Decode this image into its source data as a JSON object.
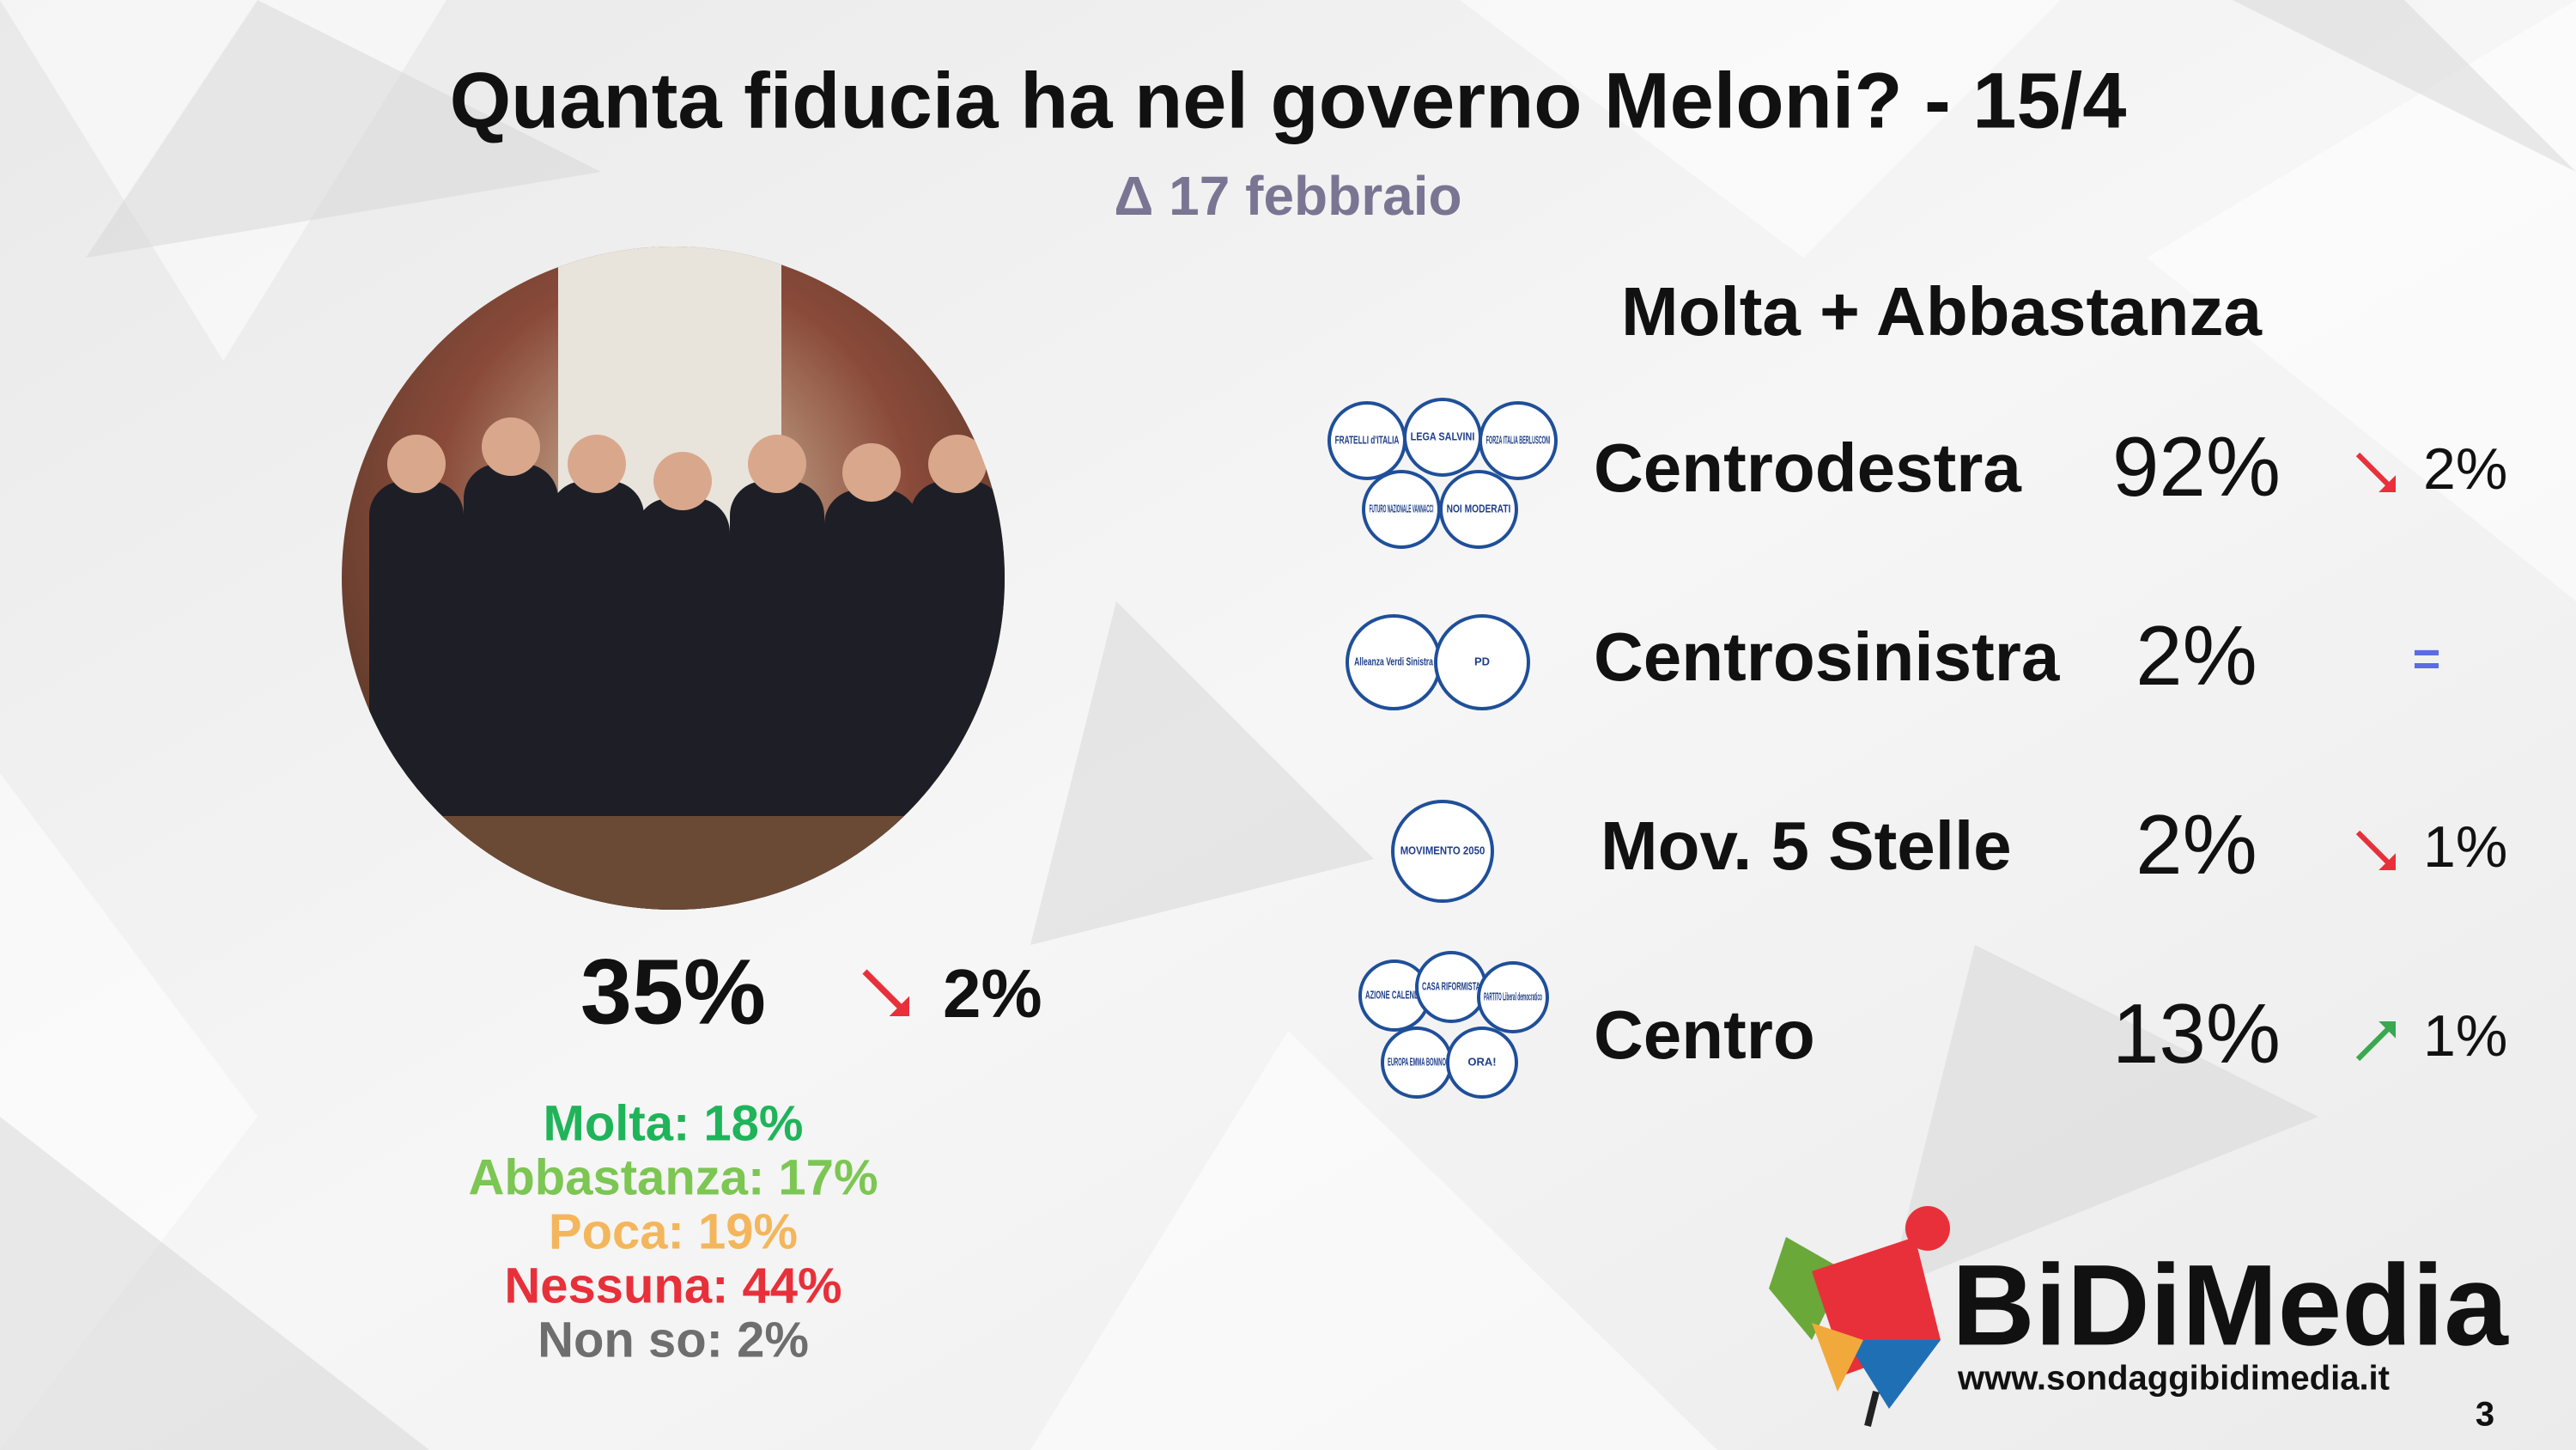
{
  "header": {
    "title": "Quanta fiducia ha nel governo Meloni? - 15/4",
    "subtitle": "Δ 17 febbraio"
  },
  "overall": {
    "value": "35%",
    "change": "2%",
    "trend": "down",
    "breakdown": [
      {
        "label": "Molta: 18%",
        "color": "#1fb45a"
      },
      {
        "label": "Abbastanza: 17%",
        "color": "#7cc653"
      },
      {
        "label": "Poca: 19%",
        "color": "#f4b65c"
      },
      {
        "label": "Nessuna: 44%",
        "color": "#e8303a"
      },
      {
        "label": "Non so: 2%",
        "color": "#6e6e6e"
      }
    ]
  },
  "parties": {
    "heading": "Molta + Abbastanza",
    "rows": [
      {
        "name": "Centrodestra",
        "value": "92%",
        "change": "2%",
        "trend": "down",
        "logos": [
          "FRATELLI d'ITALIA",
          "LEGA SALVINI",
          "FORZA ITALIA BERLUSCONI",
          "FUTURO NAZIONALE VANNACCI",
          "NOI MODERATI"
        ]
      },
      {
        "name": "Centrosinistra",
        "value": "2%",
        "change": "=",
        "trend": "flat",
        "logos": [
          "Alleanza Verdi Sinistra",
          "PD"
        ]
      },
      {
        "name": "Mov. 5 Stelle",
        "value": "2%",
        "change": "1%",
        "trend": "down",
        "logos": [
          "MOVIMENTO 2050"
        ]
      },
      {
        "name": "Centro",
        "value": "13%",
        "change": "1%",
        "trend": "up",
        "logos": [
          "AZIONE CALENDA",
          "CASA RIFORMISTA",
          "PARTITO Liberal democratico",
          "EUROPA EMMA BONINO",
          "ORA!"
        ]
      }
    ]
  },
  "brand": {
    "name": "BiDiMedia",
    "url": "www.sondaggibidimedia.it"
  },
  "page_number": "3"
}
